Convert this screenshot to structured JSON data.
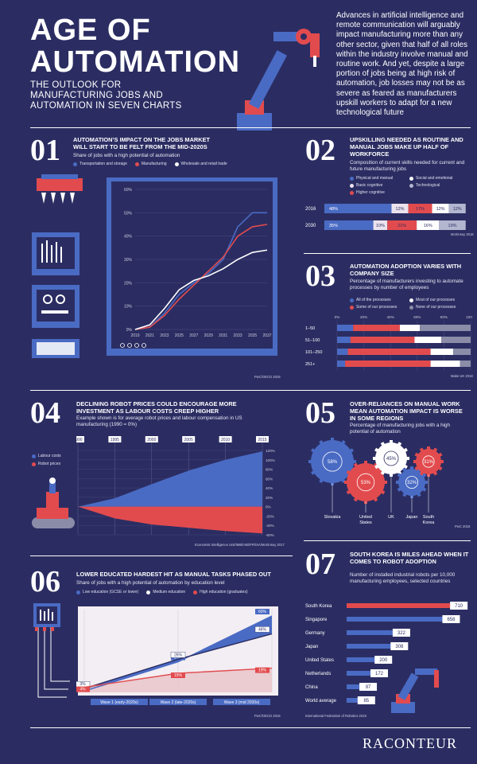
{
  "header": {
    "title": "AGE OF\nAUTOMATION",
    "subtitle": "THE OUTLOOK FOR\nMANUFACTURING JOBS AND\nAUTOMATION IN SEVEN CHARTS",
    "intro": "Advances in artificial intelligence and remote communication will arguably impact manufacturing more than any other sector, given that half of all roles within the industry involve manual and routine work. And yet, despite a large portion of jobs being at high risk of automation, job losses may not be as severe as feared as manufacturers upskill workers to adapt for a new technological future"
  },
  "colors": {
    "bg": "#2b2d62",
    "blue": "#4a6bc4",
    "red": "#e24b4e",
    "white": "#ffffff",
    "grey": "#8b8da8",
    "panel": "#3a4a9b"
  },
  "sections": {
    "s1": {
      "num": "01",
      "title": "AUTOMATION’S IMPACT ON THE JOBS MARKET WILL START TO BE FELT FROM THE MID-2020S",
      "subtitle": "Share of jobs with a high potential of automation",
      "source": "PwC/OECD 2018"
    },
    "s2": {
      "num": "02",
      "title": "UPSKILLING NEEDED AS ROUTINE AND MANUAL JOBS MAKE UP HALF OF WORKFORCE",
      "subtitle": "Composition of current skills needed for current and future manufacturing jobs",
      "source": "McKinsey 2018"
    },
    "s3": {
      "num": "03",
      "title": "AUTOMATION ADOPTION VARIES WITH COMPANY SIZE",
      "subtitle": "Percentage of manufacturers investing to automate processes by number of employees",
      "source": "Make UK 2018"
    },
    "s4": {
      "num": "04",
      "title": "DECLINING ROBOT PRICES COULD ENCOURAGE MORE INVESTMENT AS LABOUR COSTS CREEP HIGHER",
      "subtitle": "Example shown is for average robot prices and labour compensation in US manufacturing (1990 = 0%)",
      "source": "Economist Intelligence Unit/IMB/IAB/IFR/ISA/McKinsey 2017"
    },
    "s5": {
      "num": "05",
      "title": "OVER-RELIANCES ON MANUAL WORK MEAN AUTOMATION IMPACT IS WORSE IN SOME REGIONS",
      "subtitle": "Percentage of manufacturing jobs with a high potential of automation",
      "source": "PwC 2018"
    },
    "s6": {
      "num": "06",
      "title": "LOWER EDUCATED HARDEST HIT AS MANUAL TASKS PHASED OUT",
      "subtitle": "Share of jobs with a high potential of automation by education level",
      "source": "PwC/OECD 2018"
    },
    "s7": {
      "num": "07",
      "title": "SOUTH KOREA IS MILES AHEAD WHEN IT COMES TO ROBOT ADOPTION",
      "subtitle": "Number of installed industrial robots per 10,000 manufacturing employees, selected countries",
      "source": "International Federation of Robotics 2018"
    }
  },
  "brand": "RACONTEUR",
  "chart_data": [
    {
      "id": "c1",
      "type": "line",
      "x": [
        "2019",
        "2021",
        "2023",
        "2025",
        "2027",
        "2029",
        "2031",
        "2033",
        "2035",
        "2037"
      ],
      "series": [
        {
          "name": "Transportation and storage",
          "color": "#4a6bc4",
          "values": [
            0,
            1,
            7,
            15,
            20,
            24,
            30,
            44,
            50,
            50
          ]
        },
        {
          "name": "Manufacturing",
          "color": "#e24b4e",
          "values": [
            0,
            1,
            6,
            13,
            19,
            25,
            31,
            40,
            44,
            45
          ]
        },
        {
          "name": "Wholesale and retail trade",
          "color": "#ffffff",
          "values": [
            0,
            2,
            9,
            17,
            21,
            23,
            26,
            30,
            33,
            34
          ]
        }
      ],
      "ylim": [
        0,
        60
      ],
      "yticks": [
        "0%",
        "10%",
        "20%",
        "30%",
        "40%",
        "50%",
        "60%"
      ]
    },
    {
      "id": "c2",
      "type": "bar",
      "orientation": "horizontal-stacked",
      "categories": [
        "2016",
        "2030"
      ],
      "series": [
        {
          "name": "Physical and manual",
          "color": "#4a6bc4",
          "values": [
            48,
            35
          ]
        },
        {
          "name": "Basic cognitive",
          "color": "#ebe3ee",
          "values": [
            12,
            10
          ]
        },
        {
          "name": "Higher cognitive",
          "color": "#e24b4e",
          "values": [
            17,
            21
          ]
        },
        {
          "name": "Social and emotional",
          "color": "#ffffff",
          "values": [
            12,
            16
          ]
        },
        {
          "name": "Technological",
          "color": "#b3b6cf",
          "values": [
            12,
            19
          ]
        }
      ],
      "labels": [
        [
          "48%",
          "12%",
          "17%",
          "12%",
          "12%"
        ],
        [
          "35%",
          "10%",
          "21%",
          "16%",
          "19%"
        ]
      ]
    },
    {
      "id": "c3",
      "type": "bar",
      "orientation": "horizontal-stacked",
      "categories": [
        "1–50",
        "51–100",
        "101–250",
        "251+"
      ],
      "series": [
        {
          "name": "All of the processes",
          "color": "#4a6bc4",
          "values": [
            12,
            10,
            8,
            6
          ]
        },
        {
          "name": "Some of our processes",
          "color": "#e24b4e",
          "values": [
            35,
            48,
            62,
            64
          ]
        },
        {
          "name": "Most of our processes",
          "color": "#ffffff",
          "values": [
            15,
            20,
            17,
            22
          ]
        },
        {
          "name": "None of our processes",
          "color": "#8b8da8",
          "values": [
            38,
            22,
            13,
            8
          ]
        }
      ],
      "xticks": [
        "0%",
        "20%",
        "40%",
        "60%",
        "80%",
        "100%"
      ]
    },
    {
      "id": "c4",
      "type": "area",
      "x": [
        "1990",
        "1995",
        "2000",
        "2005",
        "2010",
        "2015"
      ],
      "series": [
        {
          "name": "Labour costs",
          "color": "#4a6bc4",
          "values": [
            0,
            18,
            48,
            77,
            100,
            118
          ]
        },
        {
          "name": "Robot prices",
          "color": "#e24b4e",
          "values": [
            0,
            -25,
            -38,
            -45,
            -52,
            -57
          ]
        }
      ],
      "yticks": [
        "120%",
        "100%",
        "80%",
        "60%",
        "40%",
        "20%",
        "0%",
        "-20%",
        "-40%",
        "-60%"
      ],
      "ylim": [
        -60,
        120
      ]
    },
    {
      "id": "c5",
      "type": "gear-bubbles",
      "categories": [
        "Slovakia",
        "United States",
        "UK",
        "Japan",
        "South Korea"
      ],
      "values": [
        58,
        53,
        45,
        32,
        31
      ],
      "labels": [
        "58%",
        "53%",
        "45%",
        "32%",
        "31%"
      ]
    },
    {
      "id": "c6",
      "type": "line",
      "x": [
        "Wave 1 (early-2020s)",
        "Wave 2 (late-2020s)",
        "Wave 3 (mid 2030s)"
      ],
      "series": [
        {
          "name": "Low education (GCSE or lower)",
          "color": "#4a6bc4",
          "values": [
            1,
            24,
            60
          ],
          "labels": [
            "1%",
            "24%",
            "60%"
          ]
        },
        {
          "name": "Medium education",
          "color": "#ffffff",
          "values": [
            3,
            26,
            46
          ],
          "labels": [
            "3%",
            "26%",
            "46%"
          ]
        },
        {
          "name": "High education (graduates)",
          "color": "#e24b4e",
          "values": [
            4,
            15,
            19
          ],
          "labels": [
            "4%",
            "15%",
            "19%"
          ]
        }
      ],
      "ylim": [
        0,
        65
      ]
    },
    {
      "id": "c7",
      "type": "bar",
      "orientation": "horizontal",
      "categories": [
        "South Korea",
        "Singapore",
        "Germany",
        "Japan",
        "United States",
        "Netherlands",
        "China",
        "World average"
      ],
      "values": [
        710,
        658,
        322,
        308,
        200,
        172,
        97,
        85
      ],
      "xlim": [
        0,
        720
      ]
    }
  ]
}
